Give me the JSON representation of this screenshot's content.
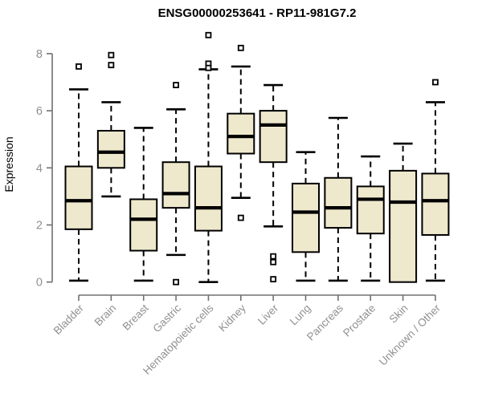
{
  "chart_data": {
    "type": "boxplot",
    "title": "ENSG00000253641 - RP11-981G7.2",
    "ylabel": "Expression",
    "xlabel": "",
    "yticks": [
      0,
      2,
      4,
      6,
      8
    ],
    "ylim": [
      -0.2,
      8.8
    ],
    "grid": false,
    "legend": "none",
    "categories": [
      "Bladder",
      "Brain",
      "Breast",
      "Gastric",
      "Hematopoietic cells",
      "Kidney",
      "Liver",
      "Lung",
      "Pancreas",
      "Prostate",
      "Skin",
      "Unknown / Other"
    ],
    "boxes": [
      {
        "category": "Bladder",
        "whisker_low": 0.05,
        "q1": 1.85,
        "median": 2.85,
        "q3": 4.05,
        "whisker_high": 6.75,
        "outliers": [
          7.55
        ]
      },
      {
        "category": "Brain",
        "whisker_low": 3.0,
        "q1": 4.0,
        "median": 4.55,
        "q3": 5.3,
        "whisker_high": 6.3,
        "outliers": [
          7.95,
          7.6
        ]
      },
      {
        "category": "Breast",
        "whisker_low": 0.05,
        "q1": 1.1,
        "median": 2.2,
        "q3": 2.9,
        "whisker_high": 5.4,
        "outliers": []
      },
      {
        "category": "Gastric",
        "whisker_low": 0.95,
        "q1": 2.6,
        "median": 3.1,
        "q3": 4.2,
        "whisker_high": 6.05,
        "outliers": [
          6.9,
          0.0
        ]
      },
      {
        "category": "Hematopoietic cells",
        "whisker_low": 0.0,
        "q1": 1.8,
        "median": 2.6,
        "q3": 4.05,
        "whisker_high": 7.45,
        "outliers": [
          8.65,
          7.65,
          7.5
        ]
      },
      {
        "category": "Kidney",
        "whisker_low": 2.95,
        "q1": 4.5,
        "median": 5.1,
        "q3": 5.9,
        "whisker_high": 7.55,
        "outliers": [
          8.2,
          2.25
        ]
      },
      {
        "category": "Liver",
        "whisker_low": 1.95,
        "q1": 4.2,
        "median": 5.5,
        "q3": 6.0,
        "whisker_high": 6.9,
        "outliers": [
          0.9,
          0.7,
          0.1
        ]
      },
      {
        "category": "Lung",
        "whisker_low": 0.05,
        "q1": 1.05,
        "median": 2.45,
        "q3": 3.45,
        "whisker_high": 4.55,
        "outliers": []
      },
      {
        "category": "Pancreas",
        "whisker_low": 0.05,
        "q1": 1.9,
        "median": 2.6,
        "q3": 3.65,
        "whisker_high": 5.75,
        "outliers": []
      },
      {
        "category": "Prostate",
        "whisker_low": 0.05,
        "q1": 1.7,
        "median": 2.9,
        "q3": 3.35,
        "whisker_high": 4.4,
        "outliers": []
      },
      {
        "category": "Skin",
        "whisker_low": 0.0,
        "q1": 0.0,
        "median": 2.8,
        "q3": 3.9,
        "whisker_high": 4.85,
        "outliers": []
      },
      {
        "category": "Unknown / Other",
        "whisker_low": 0.05,
        "q1": 1.65,
        "median": 2.85,
        "q3": 3.8,
        "whisker_high": 6.3,
        "outliers": [
          7.0
        ]
      }
    ],
    "colors": {
      "box_fill": "#EEE8CD",
      "box_stroke": "#000000",
      "median": "#000000",
      "outlier_fill": "#ffffff",
      "axis_line": "#707070",
      "axis_text": "#909090",
      "title": "#000000",
      "background": "#ffffff"
    }
  }
}
